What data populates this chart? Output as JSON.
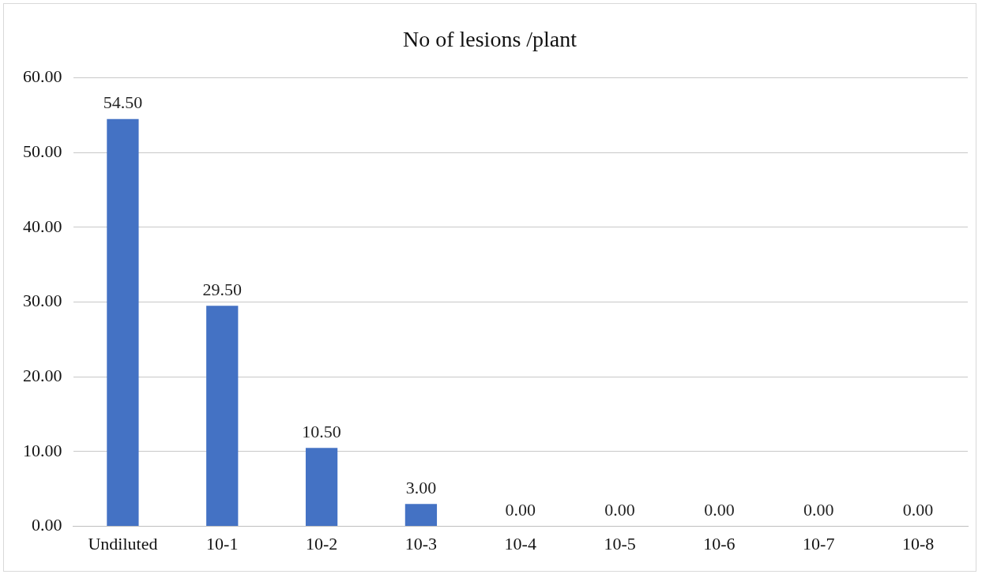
{
  "chart_data": {
    "type": "bar",
    "title": "No of lesions /plant",
    "categories": [
      "Undiluted",
      "10-1",
      "10-2",
      "10-3",
      "10-4",
      "10-5",
      "10-6",
      "10-7",
      "10-8"
    ],
    "values": [
      54.5,
      29.5,
      10.5,
      3,
      0,
      0,
      0,
      0,
      0
    ],
    "value_labels": [
      "54.50",
      "29.50",
      "10.50",
      "3.00",
      "0.00",
      "0.00",
      "0.00",
      "0.00",
      "0.00"
    ],
    "color": "#4472c4",
    "ylim": [
      0,
      60
    ],
    "yticks": [
      {
        "value": 0,
        "label": "0.00"
      },
      {
        "value": 10,
        "label": "10.00"
      },
      {
        "value": 20,
        "label": "20.00"
      },
      {
        "value": 30,
        "label": "30.00"
      },
      {
        "value": 40,
        "label": "40.00"
      },
      {
        "value": 50,
        "label": "50.00"
      },
      {
        "value": 60,
        "label": "60.00"
      }
    ],
    "grid": "y"
  }
}
